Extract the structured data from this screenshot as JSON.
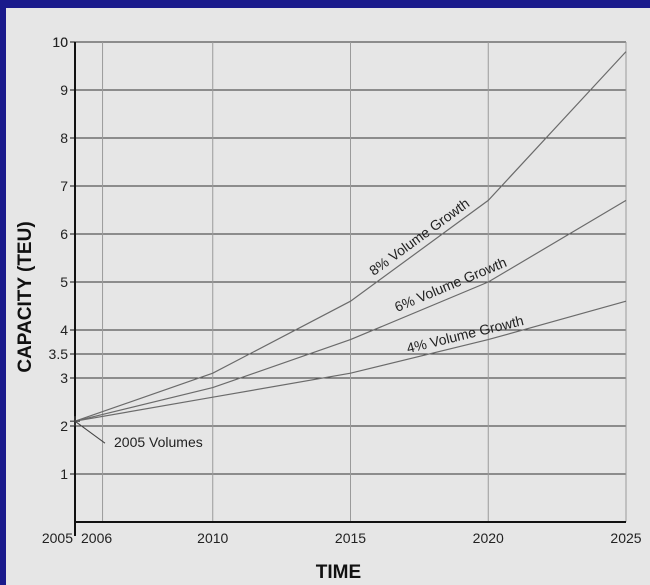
{
  "chart_data": {
    "type": "line",
    "xlabel": "TIME",
    "ylabel": "CAPACITY (TEU)",
    "x_ticks": [
      "2005",
      "2006",
      "2010",
      "2015",
      "2020",
      "2025"
    ],
    "y_ticks": [
      "1",
      "2",
      "3",
      "3.5",
      "4",
      "5",
      "6",
      "7",
      "8",
      "9",
      "10"
    ],
    "xlim": [
      2005,
      2025
    ],
    "ylim": [
      0,
      10
    ],
    "x": [
      2005,
      2010,
      2015,
      2020,
      2025
    ],
    "series": [
      {
        "name": "8% Volume Growth",
        "values": [
          2.1,
          3.1,
          4.6,
          6.7,
          9.8
        ]
      },
      {
        "name": "6% Volume Growth",
        "values": [
          2.1,
          2.8,
          3.8,
          5.0,
          6.7
        ]
      },
      {
        "name": "4% Volume Growth",
        "values": [
          2.1,
          2.6,
          3.1,
          3.8,
          4.6
        ]
      }
    ],
    "annotations": [
      {
        "text": "2005 Volumes",
        "x": 2005,
        "y": 2.1
      }
    ],
    "grid": true,
    "colors": {
      "background": "#1a1a8c",
      "panel": "#e6e6e6",
      "line": "#6b6b6b",
      "grid": "#333333"
    }
  }
}
